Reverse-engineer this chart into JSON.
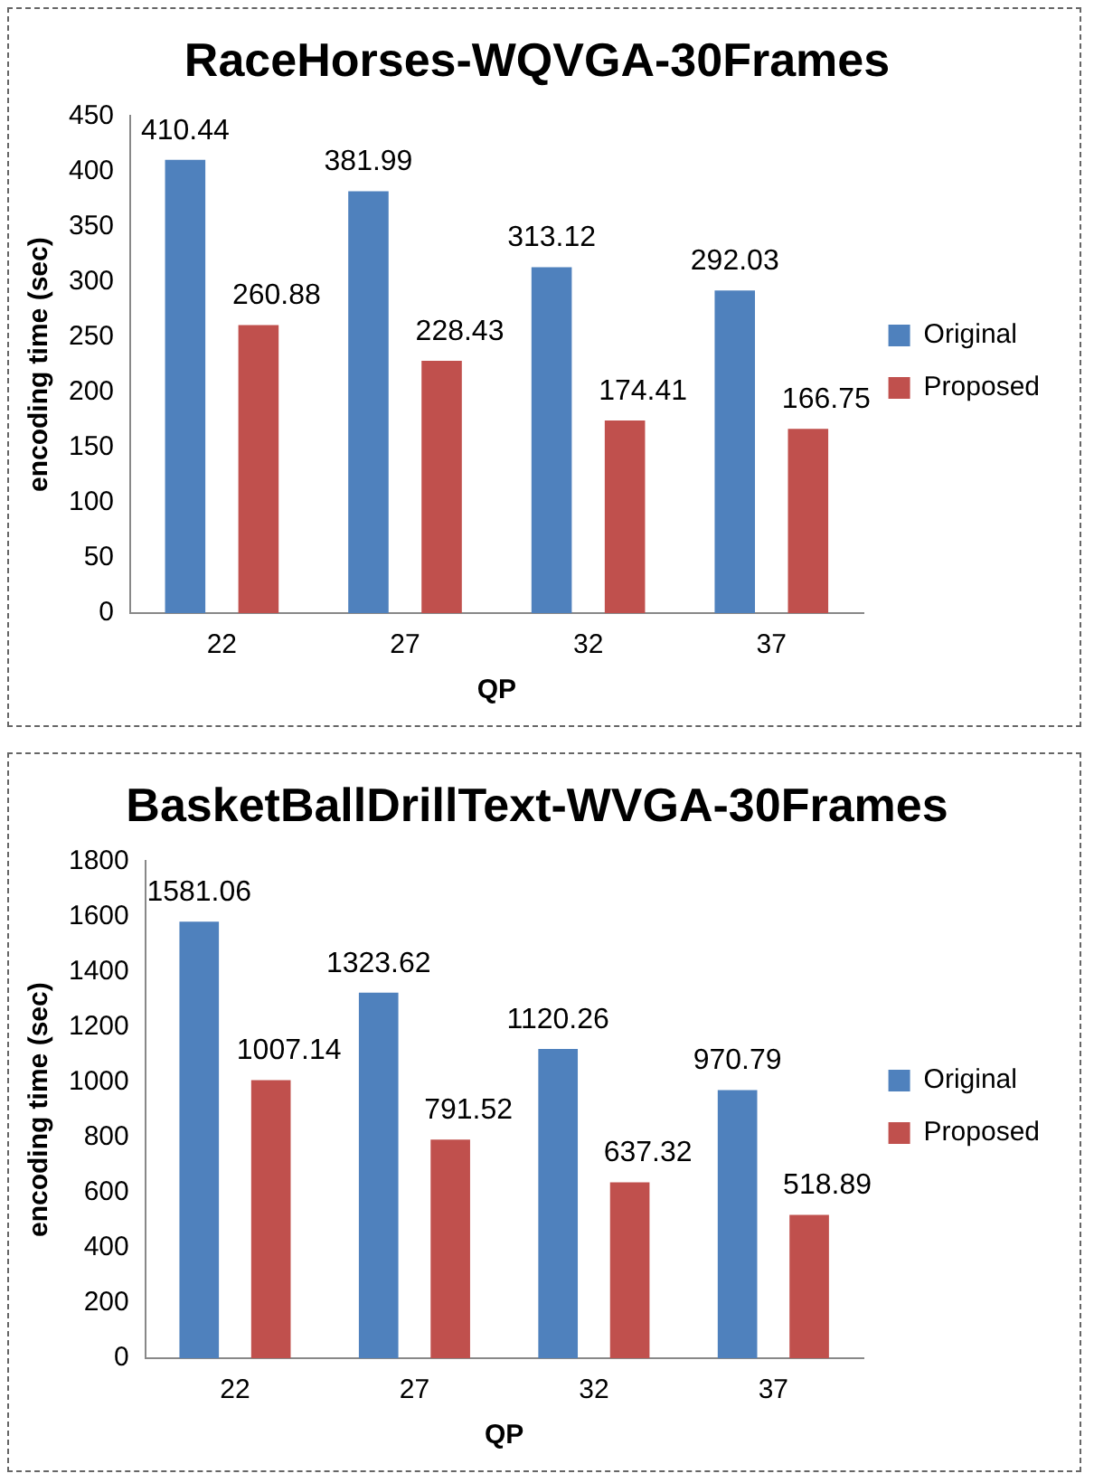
{
  "chart_data": [
    {
      "type": "bar",
      "title": "RaceHorses-WQVGA-30Frames",
      "xlabel": "QP",
      "ylabel": "encoding time (sec)",
      "categories": [
        "22",
        "27",
        "32",
        "37"
      ],
      "series": [
        {
          "name": "Original",
          "color": "#4f81bd",
          "values": [
            410.44,
            381.99,
            313.12,
            292.03
          ]
        },
        {
          "name": "Proposed",
          "color": "#c0504d",
          "values": [
            260.88,
            228.43,
            174.41,
            166.75
          ]
        }
      ],
      "ylim": [
        0,
        450
      ],
      "yticks": [
        0,
        50,
        100,
        150,
        200,
        250,
        300,
        350,
        400,
        450
      ],
      "grid": false,
      "legend": "right",
      "data_labels": true
    },
    {
      "type": "bar",
      "title": "BasketBallDrillText-WVGA-30Frames",
      "xlabel": "QP",
      "ylabel": "encoding time (sec)",
      "categories": [
        "22",
        "27",
        "32",
        "37"
      ],
      "series": [
        {
          "name": "Original",
          "color": "#4f81bd",
          "values": [
            1581.06,
            1323.62,
            1120.26,
            970.79
          ]
        },
        {
          "name": "Proposed",
          "color": "#c0504d",
          "values": [
            1007.14,
            791.52,
            637.32,
            518.89
          ]
        }
      ],
      "ylim": [
        0,
        1800
      ],
      "yticks": [
        0,
        200,
        400,
        600,
        800,
        1000,
        1200,
        1400,
        1600,
        1800
      ],
      "grid": false,
      "legend": "right",
      "data_labels": true
    }
  ]
}
